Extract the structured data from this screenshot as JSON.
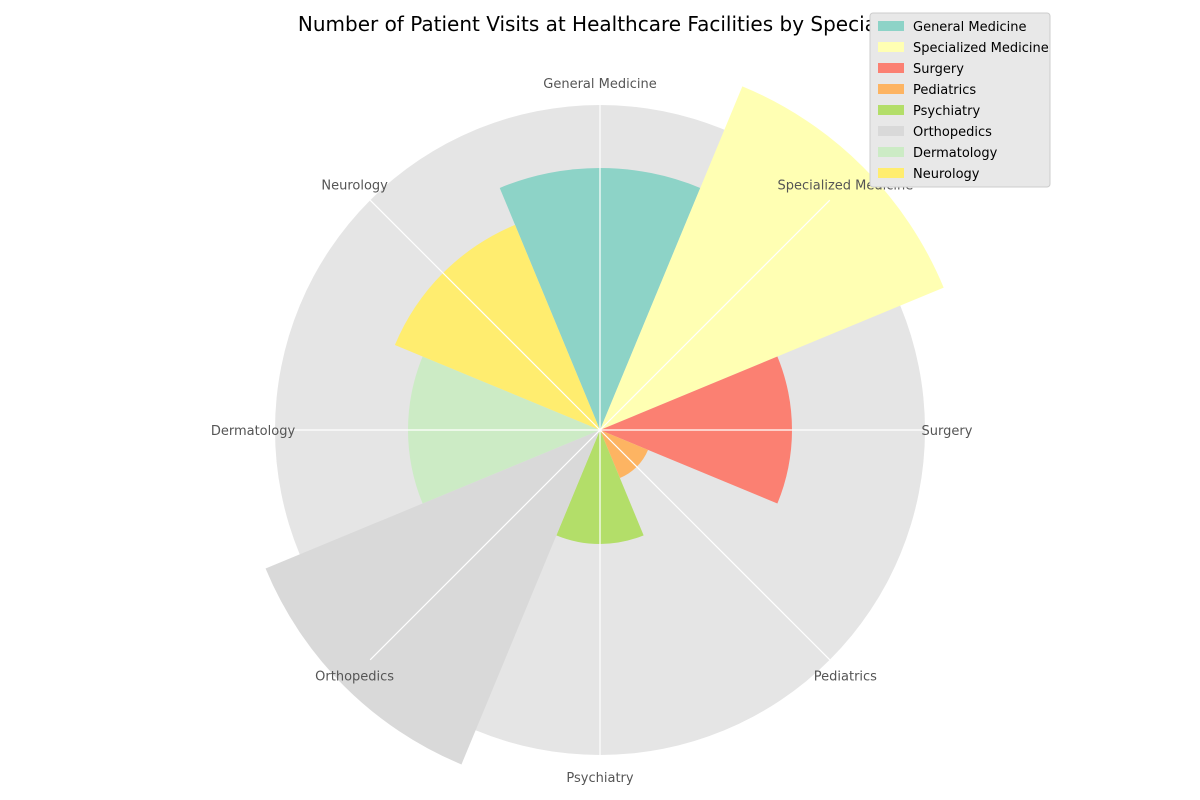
{
  "chart_data": {
    "type": "polar_bar",
    "title": "Number of Patient Visits at Healthcare Facilities by Specialty",
    "categories": [
      "General Medicine",
      "Specialized Medicine",
      "Surgery",
      "Pediatrics",
      "Psychiatry",
      "Orthopedics",
      "Dermatology",
      "Neurology"
    ],
    "values": [
      262,
      372,
      192,
      52,
      114,
      362,
      192,
      222
    ],
    "colors": [
      "#8dd3c7",
      "#ffffb3",
      "#fb8072",
      "#fdb462",
      "#b3de69",
      "#d9d9d9",
      "#ccebc5",
      "#ffed6f"
    ],
    "rmax": 325,
    "grid": true,
    "legend_position": "top-right",
    "background_color": "#e5e5e5"
  }
}
